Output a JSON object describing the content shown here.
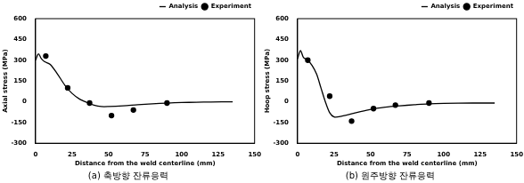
{
  "chart_data": [
    {
      "type": "line",
      "title": "(a) 축방향 잔류응력",
      "x_label": "Distance from the weld centerline (mm)",
      "y_label": "Axial stress (MPa)",
      "xlim": [
        0,
        150
      ],
      "xticks": [
        0,
        25,
        50,
        75,
        100,
        125,
        150
      ],
      "ylim": [
        -300,
        600
      ],
      "yticks": [
        -300,
        -150,
        0,
        150,
        300,
        450,
        600
      ],
      "grid": false,
      "legend": "upper right",
      "series": [
        {
          "name": "Analysis",
          "type": "line",
          "color": "#000000",
          "marker": "none",
          "line_style": "solid",
          "x": [
            0,
            2,
            4,
            6,
            10,
            15,
            20,
            25,
            30,
            35,
            40,
            45,
            50,
            60,
            70,
            80,
            90,
            100,
            110,
            120,
            135
          ],
          "values": [
            300,
            345,
            310,
            290,
            270,
            200,
            120,
            60,
            20,
            -5,
            -25,
            -35,
            -35,
            -30,
            -22,
            -15,
            -10,
            -6,
            -4,
            -2,
            -1
          ]
        },
        {
          "name": "Experiment",
          "type": "scatter",
          "color": "#000000",
          "marker": "circle",
          "x": [
            7,
            22,
            37,
            52,
            67,
            90
          ],
          "values": [
            330,
            100,
            -10,
            -100,
            -60,
            -10
          ]
        }
      ]
    },
    {
      "type": "line",
      "title": "(b) 원주방향 잔류응력",
      "x_label": "Distance from the weld centerline (mm)",
      "y_label": "Hoop stress (MPa)",
      "xlim": [
        0,
        150
      ],
      "xticks": [
        0,
        25,
        50,
        75,
        100,
        125,
        150
      ],
      "ylim": [
        -300,
        600
      ],
      "yticks": [
        -300,
        -150,
        0,
        150,
        300,
        450,
        600
      ],
      "grid": false,
      "legend": "upper right",
      "series": [
        {
          "name": "Analysis",
          "type": "line",
          "color": "#000000",
          "marker": "none",
          "line_style": "solid",
          "x": [
            0,
            2,
            4,
            7,
            10,
            13,
            16,
            19,
            22,
            25,
            30,
            40,
            50,
            60,
            70,
            80,
            90,
            100,
            120,
            135
          ],
          "values": [
            310,
            370,
            320,
            300,
            260,
            200,
            100,
            0,
            -80,
            -110,
            -105,
            -80,
            -55,
            -40,
            -30,
            -22,
            -15,
            -12,
            -10,
            -10
          ]
        },
        {
          "name": "Experiment",
          "type": "scatter",
          "color": "#000000",
          "marker": "circle",
          "x": [
            7,
            22,
            37,
            52,
            67,
            90
          ],
          "values": [
            300,
            40,
            -140,
            -50,
            -25,
            -10
          ]
        }
      ]
    }
  ]
}
